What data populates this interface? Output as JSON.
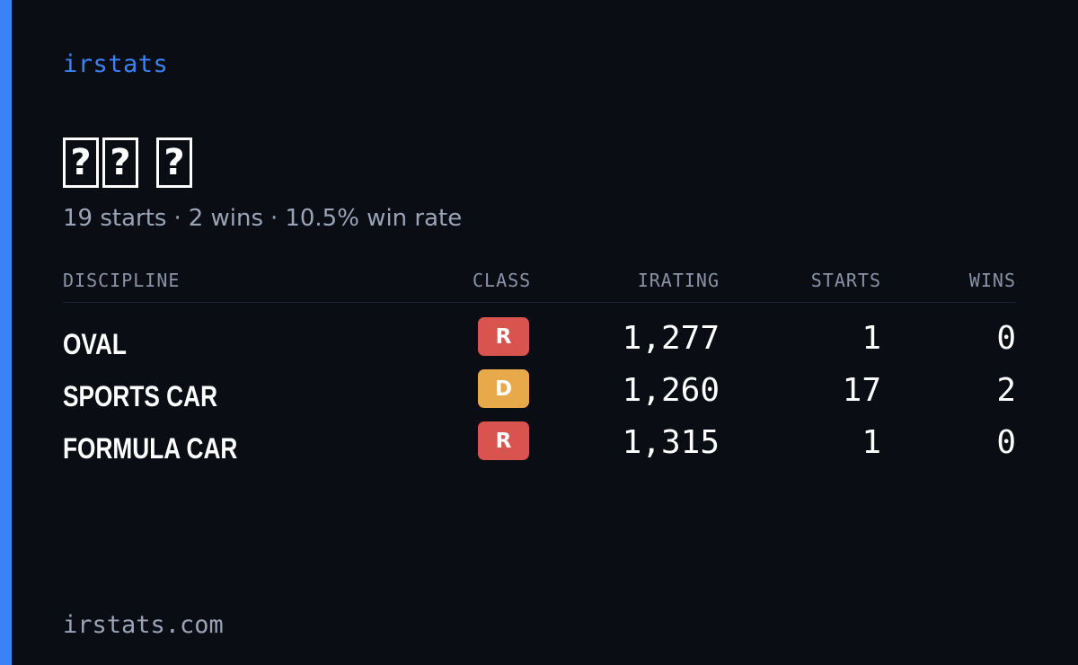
{
  "brand": "irstats",
  "profile": {
    "name_glyphs": [
      [
        "?",
        "?"
      ],
      [
        "?"
      ]
    ]
  },
  "summary": {
    "starts": "19 starts",
    "wins": "2 wins",
    "win_rate": "10.5% win rate",
    "separator": "·"
  },
  "table": {
    "headers": {
      "discipline": "DISCIPLINE",
      "class": "CLASS",
      "irating": "IRATING",
      "starts": "STARTS",
      "wins": "WINS"
    },
    "rows": [
      {
        "discipline": "OVAL",
        "class": "R",
        "class_color": "#d9534f",
        "irating": "1,277",
        "starts": "1",
        "wins": "0"
      },
      {
        "discipline": "SPORTS CAR",
        "class": "D",
        "class_color": "#e8a94a",
        "irating": "1,260",
        "starts": "17",
        "wins": "2"
      },
      {
        "discipline": "FORMULA CAR",
        "class": "R",
        "class_color": "#d9534f",
        "irating": "1,315",
        "starts": "1",
        "wins": "0"
      }
    ]
  },
  "footer": "irstats.com",
  "colors": {
    "background": "#0a0d14",
    "accent": "#3b82f6",
    "muted_text": "#9aa4b6",
    "class_r": "#d9534f",
    "class_d": "#e8a94a"
  }
}
